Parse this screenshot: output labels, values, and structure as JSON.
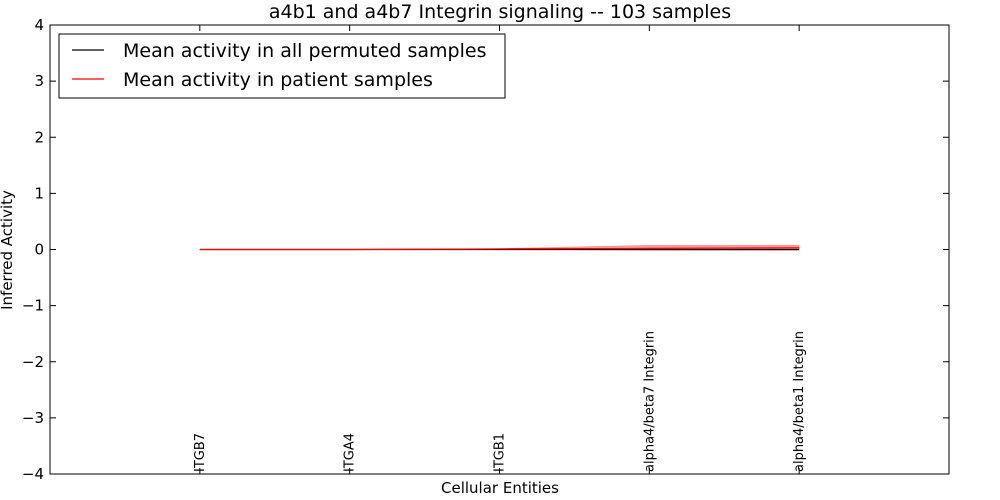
{
  "chart_data": {
    "type": "line",
    "title": "a4b1 and a4b7 Integrin signaling -- 103 samples",
    "xlabel": "Cellular Entities",
    "ylabel": "Inferred Activity",
    "ylim": [
      -4,
      4
    ],
    "yticks": [
      4,
      3,
      2,
      1,
      0,
      -1,
      -2,
      -3,
      -4
    ],
    "ytick_labels": [
      "4",
      "3",
      "2",
      "1",
      "0",
      "−1",
      "−2",
      "−3",
      "−4"
    ],
    "categories": [
      "ITGB7",
      "ITGA4",
      "ITGB1",
      "alpha4/beta7 Integrin",
      "alpha4/beta1 Integrin"
    ],
    "legend_position": "top-left",
    "grid": false,
    "series": [
      {
        "name": "Mean activity in all permuted samples",
        "color": "#000000",
        "values": [
          0.0,
          0.0,
          0.0,
          0.0,
          0.0
        ],
        "band_low": [
          0.0,
          0.0,
          0.0,
          0.0,
          0.0
        ],
        "band_high": [
          0.0,
          0.0,
          0.0,
          0.0,
          0.0
        ]
      },
      {
        "name": "Mean activity in patient samples",
        "color": "#ff0000",
        "values": [
          0.0,
          0.0,
          0.01,
          0.02,
          0.03
        ],
        "band_low": [
          0.0,
          0.0,
          0.0,
          -0.02,
          -0.02
        ],
        "band_high": [
          0.01,
          0.01,
          0.02,
          0.08,
          0.08
        ]
      }
    ]
  }
}
